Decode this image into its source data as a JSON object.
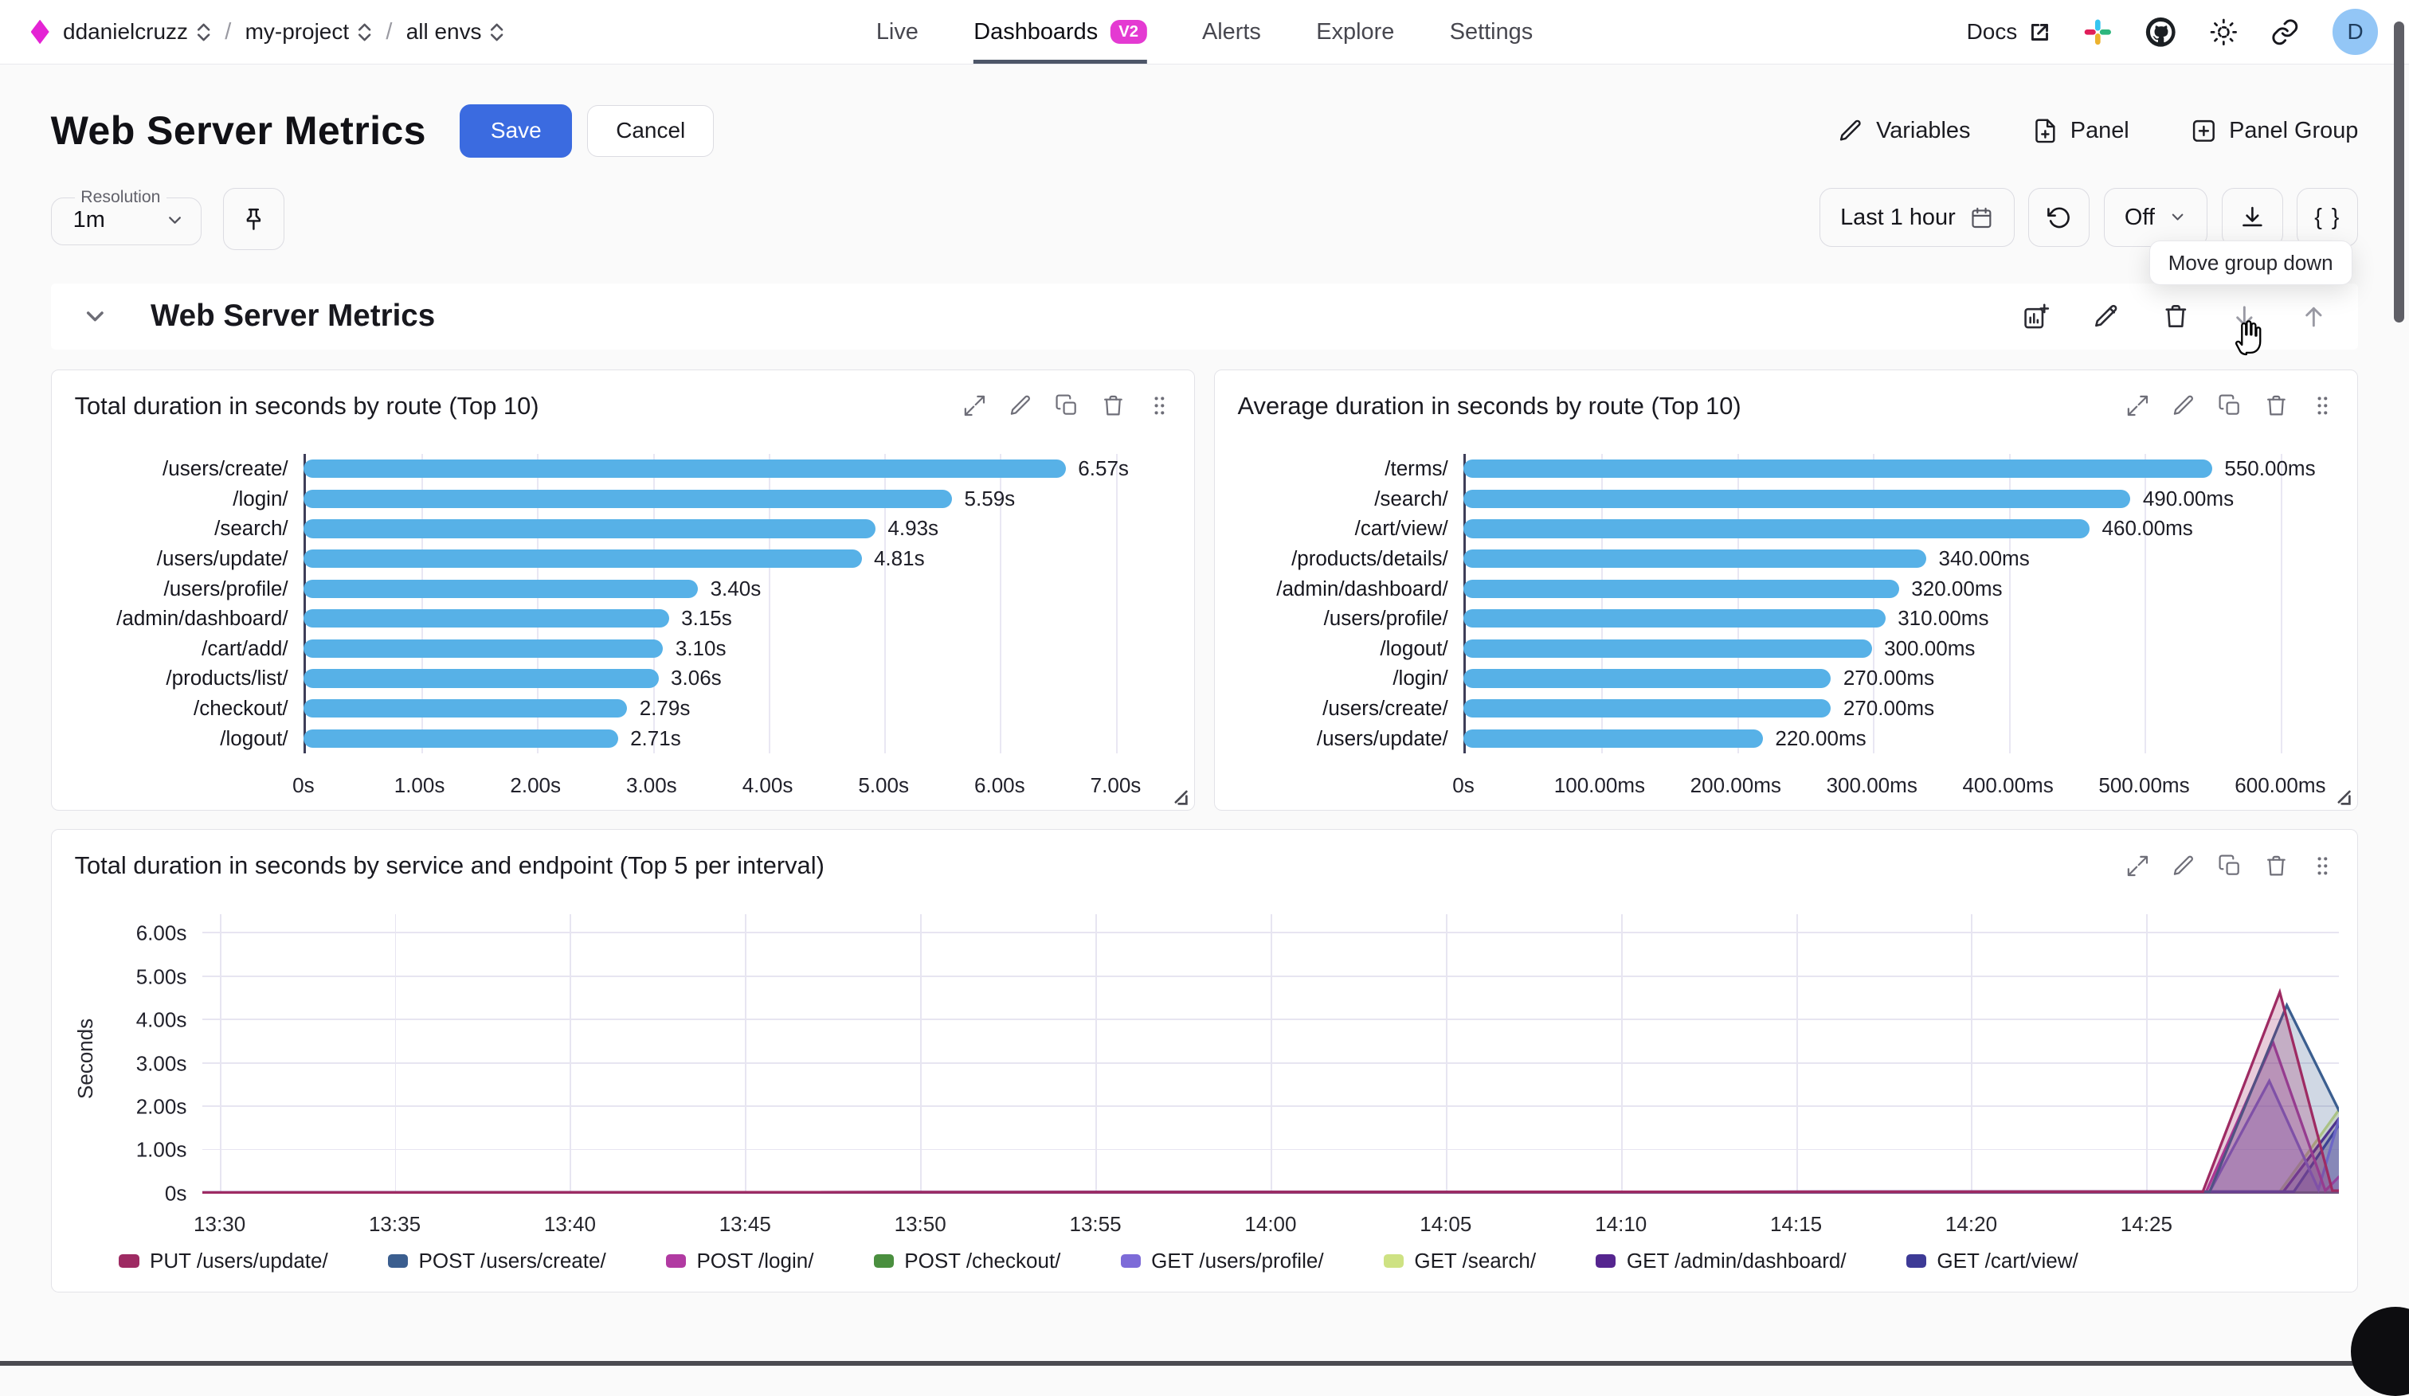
{
  "topbar": {
    "breadcrumb": {
      "org": "ddanielcruzz",
      "project": "my-project",
      "env": "all envs",
      "separator": "/"
    },
    "tabs": [
      {
        "label": "Live",
        "active": false
      },
      {
        "label": "Dashboards",
        "active": true,
        "badge": "V2"
      },
      {
        "label": "Alerts",
        "active": false
      },
      {
        "label": "Explore",
        "active": false
      },
      {
        "label": "Settings",
        "active": false
      }
    ],
    "docs_label": "Docs",
    "avatar_initial": "D"
  },
  "header": {
    "title": "Web Server Metrics",
    "save_label": "Save",
    "cancel_label": "Cancel",
    "actions": [
      {
        "label": "Variables"
      },
      {
        "label": "Panel"
      },
      {
        "label": "Panel Group"
      }
    ]
  },
  "controls": {
    "resolution_label": "Resolution",
    "resolution_value": "1m",
    "time_range": "Last 1 hour",
    "refresh_state": "Off",
    "braces_label": "{ }",
    "tooltip": "Move group down"
  },
  "group": {
    "title": "Web Server Metrics"
  },
  "colors": {
    "accent_blue": "#3b6be0",
    "brand_magenta": "#e424d4",
    "bar_blue": "#57b1e7",
    "active_tab_underline": "#4d5668"
  },
  "chart_data": [
    {
      "type": "bar",
      "orientation": "horizontal",
      "title": "Total duration in seconds by route (Top 10)",
      "categories": [
        "/users/create/",
        "/login/",
        "/search/",
        "/users/update/",
        "/users/profile/",
        "/admin/dashboard/",
        "/cart/add/",
        "/products/list/",
        "/checkout/",
        "/logout/"
      ],
      "values": [
        6.57,
        5.59,
        4.93,
        4.81,
        3.4,
        3.15,
        3.1,
        3.06,
        2.79,
        2.71
      ],
      "value_labels": [
        "6.57s",
        "5.59s",
        "4.93s",
        "4.81s",
        "3.40s",
        "3.15s",
        "3.10s",
        "3.06s",
        "2.79s",
        "2.71s"
      ],
      "bar_color": "#57b1e7",
      "axis_max": 7.6,
      "xticks": [
        {
          "v": 0,
          "label": "0s"
        },
        {
          "v": 1,
          "label": "1.00s"
        },
        {
          "v": 2,
          "label": "2.00s"
        },
        {
          "v": 3,
          "label": "3.00s"
        },
        {
          "v": 4,
          "label": "4.00s"
        },
        {
          "v": 5,
          "label": "5.00s"
        },
        {
          "v": 6,
          "label": "6.00s"
        },
        {
          "v": 7,
          "label": "7.00s"
        }
      ]
    },
    {
      "type": "bar",
      "orientation": "horizontal",
      "title": "Average duration in seconds by route (Top 10)",
      "categories": [
        "/terms/",
        "/search/",
        "/cart/view/",
        "/products/details/",
        "/admin/dashboard/",
        "/users/profile/",
        "/logout/",
        "/login/",
        "/users/create/",
        "/users/update/"
      ],
      "values": [
        550,
        490,
        460,
        340,
        320,
        310,
        300,
        270,
        270,
        220
      ],
      "value_labels": [
        "550.00ms",
        "490.00ms",
        "460.00ms",
        "340.00ms",
        "320.00ms",
        "310.00ms",
        "300.00ms",
        "270.00ms",
        "270.00ms",
        "220.00ms"
      ],
      "bar_color": "#57b1e7",
      "axis_max": 650,
      "xticks": [
        {
          "v": 0,
          "label": "0s"
        },
        {
          "v": 100,
          "label": "100.00ms"
        },
        {
          "v": 200,
          "label": "200.00ms"
        },
        {
          "v": 300,
          "label": "300.00ms"
        },
        {
          "v": 400,
          "label": "400.00ms"
        },
        {
          "v": 500,
          "label": "500.00ms"
        },
        {
          "v": 600,
          "label": "600.00ms"
        }
      ]
    },
    {
      "type": "line",
      "title": "Total duration in seconds by service and endpoint (Top 5 per interval)",
      "ylabel": "Seconds",
      "ymax": 6.45,
      "yticks": [
        {
          "v": 0,
          "label": "0s"
        },
        {
          "v": 1,
          "label": "1.00s"
        },
        {
          "v": 2,
          "label": "2.00s"
        },
        {
          "v": 3,
          "label": "3.00s"
        },
        {
          "v": 4,
          "label": "4.00s"
        },
        {
          "v": 5,
          "label": "5.00s"
        },
        {
          "v": 6,
          "label": "6.00s"
        }
      ],
      "x_min": -0.5,
      "x_max": 60.5,
      "x_unit": "minutes after 13:30",
      "xticks": [
        {
          "v": 0,
          "label": "13:30"
        },
        {
          "v": 5,
          "label": "13:35"
        },
        {
          "v": 10,
          "label": "13:40"
        },
        {
          "v": 15,
          "label": "13:45"
        },
        {
          "v": 20,
          "label": "13:50"
        },
        {
          "v": 25,
          "label": "13:55"
        },
        {
          "v": 30,
          "label": "14:00"
        },
        {
          "v": 35,
          "label": "14:05"
        },
        {
          "v": 40,
          "label": "14:10"
        },
        {
          "v": 45,
          "label": "14:15"
        },
        {
          "v": 50,
          "label": "14:20"
        },
        {
          "v": 55,
          "label": "14:25"
        }
      ],
      "series": [
        {
          "name": "PUT /users/update/",
          "color": "#9e2b63",
          "points": [
            [
              -0.5,
              0.03
            ],
            [
              56.6,
              0.05
            ],
            [
              58.8,
              4.65
            ],
            [
              60.3,
              0.07
            ],
            [
              60.5,
              0.07
            ]
          ]
        },
        {
          "name": "POST /users/create/",
          "color": "#3b5e8f",
          "points": [
            [
              -0.5,
              0.03
            ],
            [
              56.8,
              0.05
            ],
            [
              59.0,
              4.35
            ],
            [
              60.5,
              1.9
            ]
          ]
        },
        {
          "name": "POST /login/",
          "color": "#b13aa2",
          "points": [
            [
              -0.5,
              0.03
            ],
            [
              56.7,
              0.05
            ],
            [
              58.6,
              3.5
            ],
            [
              60.1,
              0.07
            ],
            [
              60.5,
              0.4
            ]
          ]
        },
        {
          "name": "POST /checkout/",
          "color": "#4a8f3f",
          "points": [
            [
              -0.5,
              0.02
            ],
            [
              60.5,
              0.03
            ]
          ]
        },
        {
          "name": "GET /users/profile/",
          "color": "#7d6bd8",
          "points": [
            [
              -0.5,
              0.03
            ],
            [
              56.8,
              0.05
            ],
            [
              58.5,
              2.6
            ],
            [
              59.9,
              0.1
            ],
            [
              60.5,
              1.75
            ]
          ]
        },
        {
          "name": "GET /search/",
          "color": "#cee283",
          "points": [
            [
              -0.5,
              0.02
            ],
            [
              58.8,
              0.05
            ],
            [
              60.5,
              1.95
            ]
          ]
        },
        {
          "name": "GET /admin/dashboard/",
          "color": "#55258f",
          "points": [
            [
              -0.5,
              0.02
            ],
            [
              58.9,
              0.05
            ],
            [
              60.5,
              1.75
            ]
          ]
        },
        {
          "name": "GET /cart/view/",
          "color": "#3d3a96",
          "points": [
            [
              -0.5,
              0.02
            ],
            [
              59.2,
              0.05
            ],
            [
              60.5,
              1.6
            ]
          ]
        }
      ],
      "legend_position": "bottom"
    }
  ]
}
